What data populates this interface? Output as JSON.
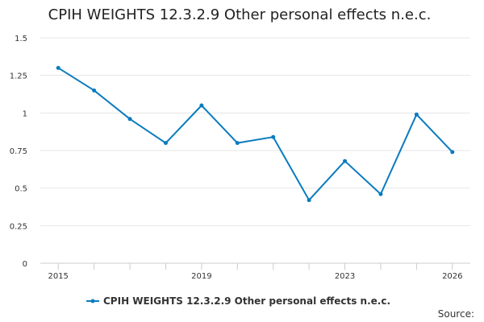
{
  "chart_data": {
    "type": "line",
    "title": "CPIH WEIGHTS 12.3.2.9 Other personal effects n.e.c.",
    "xlabel": "",
    "ylabel": "",
    "x": [
      2015,
      2016,
      2017,
      2018,
      2019,
      2020,
      2021,
      2022,
      2023,
      2024,
      2025,
      2026
    ],
    "x_tick_labels": [
      "2015",
      "2019",
      "2023",
      "2026"
    ],
    "x_tick_values": [
      2015,
      2019,
      2023,
      2026
    ],
    "y_tick_labels": [
      "0",
      "0.25",
      "0.5",
      "0.75",
      "1",
      "1.25",
      "1.5"
    ],
    "y_tick_values": [
      0,
      0.25,
      0.5,
      0.75,
      1,
      1.25,
      1.5
    ],
    "ylim": [
      0,
      1.5
    ],
    "grid": true,
    "legend_position": "bottom",
    "series": [
      {
        "name": "CPIH WEIGHTS 12.3.2.9 Other personal effects n.e.c.",
        "color": "#0a7bbf",
        "values": [
          1.3,
          1.15,
          0.96,
          0.8,
          1.05,
          0.8,
          0.84,
          0.42,
          0.68,
          0.46,
          0.99,
          0.74
        ]
      }
    ]
  },
  "footer": {
    "source_label": "Source:"
  }
}
